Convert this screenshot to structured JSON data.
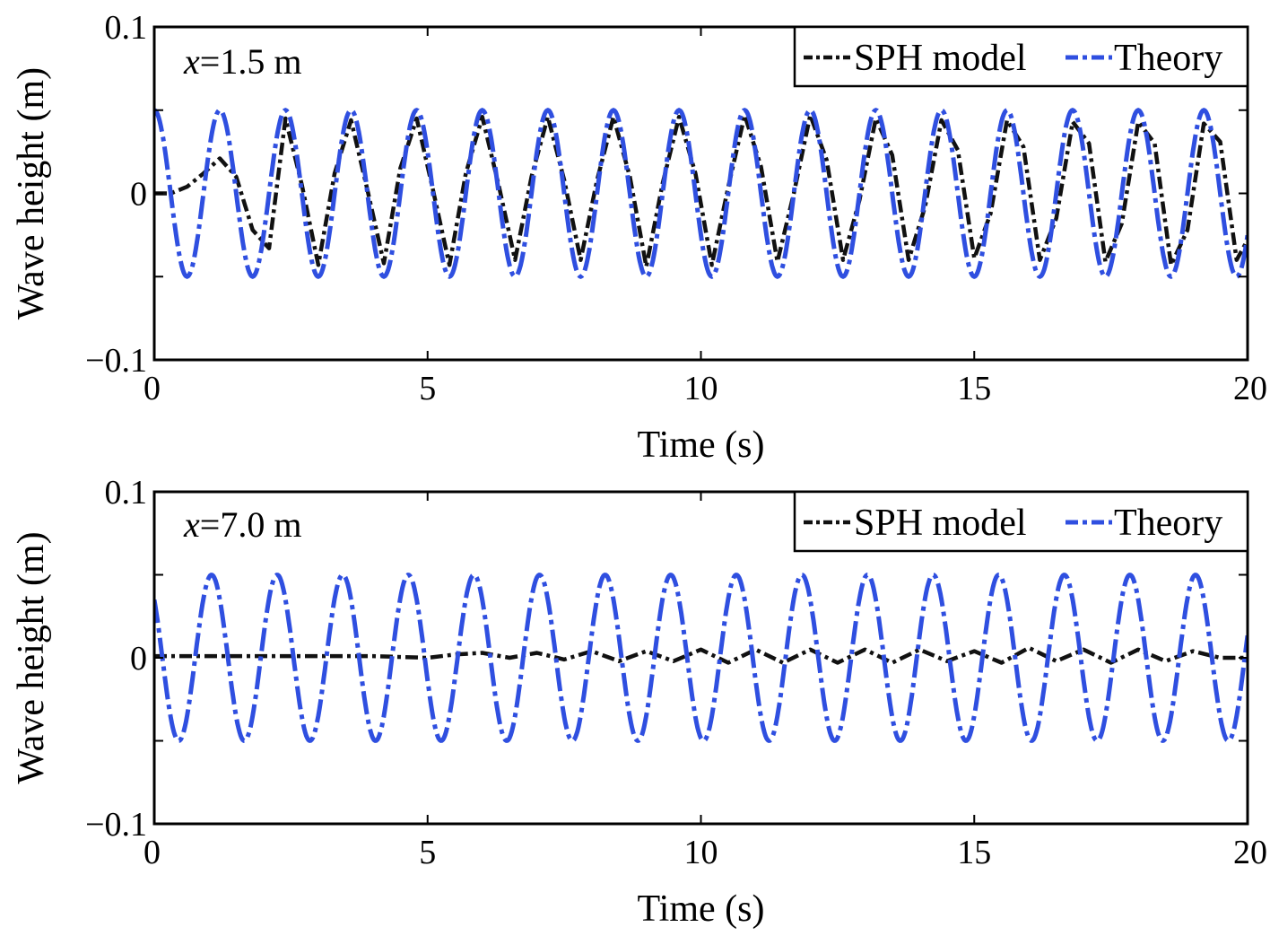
{
  "chart_data": [
    {
      "type": "line",
      "annotation": {
        "italic": "x",
        "rest": "=1.5 m"
      },
      "xlabel": "Time (s)",
      "ylabel": "Wave height (m)",
      "xlim": [
        0,
        20
      ],
      "ylim": [
        -0.1,
        0.1
      ],
      "xticks": [
        0,
        5,
        10,
        15,
        20
      ],
      "xtick_labels": [
        "0",
        "5",
        "10",
        "15",
        "20"
      ],
      "yticks": [
        -0.1,
        0,
        0.1
      ],
      "ytick_labels": [
        "−0.1",
        "0",
        "0.1"
      ],
      "grid": false,
      "legend_position": "top-right",
      "series": [
        {
          "name": "SPH model",
          "color": "#111111",
          "x": [
            0,
            0.3,
            0.6,
            0.9,
            1.2,
            1.5,
            1.8,
            2.1,
            2.4,
            2.7,
            3.0,
            3.3,
            3.6,
            3.9,
            4.2,
            4.5,
            4.8,
            5.1,
            5.4,
            5.7,
            6.0,
            6.3,
            6.6,
            6.9,
            7.2,
            7.5,
            7.8,
            8.1,
            8.4,
            8.7,
            9.0,
            9.3,
            9.6,
            9.9,
            10.2,
            10.5,
            10.8,
            11.1,
            11.4,
            11.7,
            12.0,
            12.3,
            12.6,
            12.9,
            13.2,
            13.5,
            13.8,
            14.1,
            14.4,
            14.7,
            15.0,
            15.3,
            15.6,
            15.9,
            16.2,
            16.5,
            16.8,
            17.1,
            17.4,
            17.7,
            18.0,
            18.3,
            18.6,
            18.9,
            19.2,
            19.5,
            19.8,
            20.0
          ],
          "y": [
            0.0,
            0.0,
            0.004,
            0.012,
            0.021,
            0.01,
            -0.022,
            -0.033,
            0.045,
            0.005,
            -0.043,
            0.012,
            0.044,
            0.002,
            -0.042,
            0.015,
            0.045,
            0.002,
            -0.043,
            0.012,
            0.046,
            0.005,
            -0.04,
            0.01,
            0.046,
            0.008,
            -0.04,
            0.008,
            0.046,
            0.01,
            -0.044,
            0.006,
            0.046,
            0.012,
            -0.043,
            0.004,
            0.047,
            0.016,
            -0.041,
            0.0,
            0.047,
            0.02,
            -0.04,
            -0.004,
            0.045,
            0.023,
            -0.04,
            -0.008,
            0.044,
            0.026,
            -0.039,
            -0.012,
            0.044,
            0.028,
            -0.04,
            -0.015,
            0.043,
            0.03,
            -0.041,
            -0.018,
            0.043,
            0.03,
            -0.043,
            -0.022,
            0.042,
            0.031,
            -0.04,
            -0.028
          ]
        },
        {
          "name": "Theory",
          "color": "#2f4fe0",
          "amplitude": 0.05,
          "period": 1.2,
          "x": [
            0,
            20
          ],
          "y_at_x0": 0.05
        }
      ]
    },
    {
      "type": "line",
      "annotation": {
        "italic": "x",
        "rest": "=7.0 m"
      },
      "xlabel": "Time (s)",
      "ylabel": "Wave height (m)",
      "xlim": [
        0,
        20
      ],
      "ylim": [
        -0.1,
        0.1
      ],
      "xticks": [
        0,
        5,
        10,
        15,
        20
      ],
      "xtick_labels": [
        "0",
        "5",
        "10",
        "15",
        "20"
      ],
      "yticks": [
        -0.1,
        0,
        0.1
      ],
      "ytick_labels": [
        "−0.1",
        "0",
        "0.1"
      ],
      "grid": false,
      "legend_position": "top-right",
      "series": [
        {
          "name": "SPH model",
          "color": "#111111",
          "x": [
            0,
            1,
            2,
            3,
            4,
            5,
            5.5,
            6,
            6.5,
            7,
            7.5,
            8,
            8.5,
            9,
            9.5,
            10,
            10.5,
            11,
            11.5,
            12,
            12.5,
            13,
            13.5,
            14,
            14.5,
            15,
            15.5,
            16,
            16.5,
            17,
            17.5,
            18,
            18.5,
            19,
            19.5,
            20
          ],
          "y": [
            0.001,
            0.001,
            0.001,
            0.001,
            0.001,
            0.0,
            0.002,
            0.003,
            0.0,
            0.003,
            -0.001,
            0.004,
            -0.002,
            0.004,
            -0.002,
            0.005,
            -0.003,
            0.005,
            -0.003,
            0.005,
            -0.003,
            0.005,
            -0.003,
            0.005,
            -0.002,
            0.004,
            -0.003,
            0.006,
            -0.002,
            0.005,
            -0.003,
            0.005,
            -0.002,
            0.004,
            0.0,
            0.0
          ]
        },
        {
          "name": "Theory",
          "color": "#2f4fe0",
          "amplitude": 0.05,
          "period": 1.2,
          "x": [
            0,
            20
          ],
          "y_at_x0": 0.035
        }
      ]
    }
  ]
}
